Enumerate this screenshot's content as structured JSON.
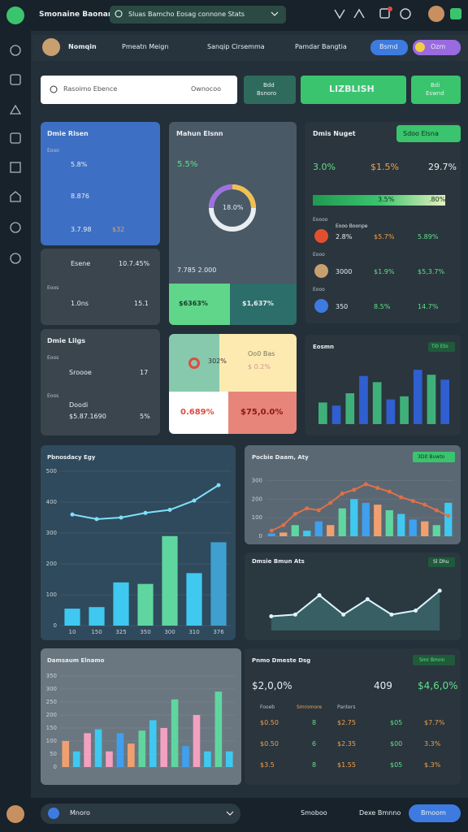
{
  "topbar": {
    "brand": "Smonaine Baonan",
    "search": "Sluas Bamcho Eosag connone Stats"
  },
  "header": {
    "user": "Nomqin",
    "tabs": [
      "Pmeatn Meign",
      "Sanqip Cirsemma",
      "Pamdar Bangtia"
    ],
    "button": "Bsmd",
    "toggle": "Ozm"
  },
  "search_row": {
    "placeholder": "Rasoimo Ebence",
    "hint": "Ownocoo",
    "buttons": [
      [
        "Bdd",
        "Bsnoro"
      ],
      [
        "LIZBLISH"
      ],
      [
        "Bdi",
        "Eswnd"
      ]
    ]
  },
  "blue_card": {
    "title": "Dmie Rlsen",
    "label": "Eooo",
    "rows": [
      "5.8%",
      "8.876",
      "3.7.98"
    ],
    "badge": "$32"
  },
  "gray_card": {
    "name": "Esene",
    "value": "10.7.45%",
    "label": "Eoos",
    "row_name": "1.0ns",
    "row_value": "15.1"
  },
  "list_card": {
    "title": "Dmie Lilgs",
    "label1": "Eoos",
    "name1": "Sroooe",
    "value1": "17",
    "label2": "Eoos",
    "name2": "Doodi",
    "sub2": "$5.87.1690",
    "value2": "5%"
  },
  "donut_card": {
    "title": "Mahun Elsnn",
    "value": "5.5%",
    "center": "18.0%",
    "footer": "7.785 2.000",
    "left": "$6363%",
    "right": "$1,637%"
  },
  "quad_card": {
    "tl": "302%",
    "tr": [
      "Oo0 Bas",
      "$ 0.2%"
    ],
    "bl": "0.689%",
    "br": "$75,0.0%"
  },
  "stats_card": {
    "title": "Dmis Nuget",
    "dropdown": "Sdoo Elsna",
    "values": [
      "3.0%",
      "$1.5%",
      "29.7%"
    ],
    "progress": [
      "3.5%",
      ".80%"
    ],
    "rows": [
      {
        "label": "Eoooo",
        "name": "Eooo Boonpe",
        "values": [
          "2.8%",
          "$5.7%",
          "5.89%"
        ]
      },
      {
        "label": "Eooo",
        "name": null,
        "values": [
          "3000",
          "$1.9%",
          "$5,3.7%"
        ]
      },
      {
        "label": "Eooo",
        "name": null,
        "values": [
          "350",
          "8.5%",
          "14.7%"
        ]
      }
    ]
  },
  "charts": {
    "small": {
      "type": "bar",
      "title": "Eosmn",
      "badge": "Ti0 Eto",
      "ylim": [
        0,
        100
      ],
      "series": [
        {
          "type": "bar",
          "colors": [
            "#3fb07a",
            "#2f5fd0"
          ],
          "values": [
            35,
            30,
            50,
            78,
            68,
            40,
            45,
            88,
            80,
            72
          ]
        }
      ]
    },
    "big": {
      "type": "combo",
      "title": "Pbnosdacy Egy",
      "ylim": [
        0,
        500
      ],
      "yticks": [
        0,
        100,
        200,
        300,
        400,
        500
      ],
      "categories": [
        "10",
        "150",
        "325",
        "350",
        "300",
        "310",
        "376"
      ],
      "series": [
        {
          "type": "bar",
          "colors": [
            "#3fc8f0",
            "#3fc8f0",
            "#3fc8f0",
            "#5fd6a0",
            "#5fd6a0",
            "#3fc8f0",
            "#3fa0d0"
          ],
          "values": [
            55,
            60,
            140,
            135,
            290,
            170,
            270
          ]
        },
        {
          "type": "line",
          "color": "#7fe0ff",
          "values": [
            360,
            345,
            350,
            365,
            375,
            405,
            455
          ]
        }
      ]
    },
    "combo": {
      "type": "combo",
      "title": "Pocbie Daam, Aty",
      "badge": "3Dit Buwto",
      "ylim": [
        0,
        350
      ],
      "yticks": [
        0,
        100,
        200,
        300
      ],
      "series": [
        {
          "type": "bar",
          "colors": [
            "#3fa0f0",
            "#f0a070",
            "#5fd6a0",
            "#3fc8f0"
          ],
          "values": [
            15,
            20,
            60,
            30,
            80,
            60,
            150,
            200,
            180,
            170,
            140,
            120,
            90,
            80,
            60,
            180
          ]
        },
        {
          "type": "line",
          "color": "#e0704a",
          "values": [
            30,
            60,
            120,
            150,
            140,
            180,
            230,
            250,
            280,
            260,
            240,
            210,
            190,
            170,
            140,
            110
          ]
        }
      ]
    },
    "area": {
      "type": "area",
      "title": "Dmsie Bmun Ats",
      "badge": "Sl Dhu",
      "ylim": [
        0,
        100
      ],
      "series": [
        {
          "type": "area",
          "color": "#dff4ff",
          "values": [
            25,
            28,
            62,
            28,
            55,
            28,
            35,
            70
          ]
        }
      ]
    },
    "multi": {
      "type": "bar",
      "title": "Damsaum Elnamo",
      "ylim": [
        0,
        350
      ],
      "yticks": [
        0,
        50,
        100,
        150,
        200,
        250,
        300,
        350
      ],
      "series": [
        {
          "type": "bar",
          "colors": [
            "#f0a070",
            "#3fc8f0",
            "#f4a0c0",
            "#3fc8f0",
            "#f4a0c0",
            "#3fa0f0",
            "#f0a070",
            "#5fd6a0",
            "#3fc8f0",
            "#f4a0c0",
            "#5fd6a0",
            "#3fa0f0",
            "#f4a0c0",
            "#3fc8f0",
            "#5fd6a0",
            "#3fc8f0"
          ],
          "values": [
            100,
            60,
            130,
            145,
            60,
            130,
            90,
            140,
            180,
            150,
            260,
            80,
            200,
            60,
            290,
            60
          ]
        }
      ]
    }
  },
  "table_card": {
    "title": "Pnmo Dmeste Dsg",
    "badge": "Smr Bmnn",
    "values": [
      "$2,0,0%",
      "409",
      "$4,6,0%"
    ],
    "headers": [
      "Fooeb",
      "Smromore",
      "Panters"
    ],
    "rows": [
      [
        "$0.50",
        "8",
        "$2.75",
        "$05",
        "$7.7%"
      ],
      [
        "$0.50",
        "6",
        "$2.35",
        "$00",
        "3.3%"
      ],
      [
        "$3.5",
        "8",
        "$1.55",
        "$05",
        "$.3%"
      ]
    ]
  },
  "bottombar": {
    "dropdown": "Mnoro",
    "items": [
      "Smoboo",
      "Dexe Bmnno"
    ],
    "button": "Bmoom"
  }
}
